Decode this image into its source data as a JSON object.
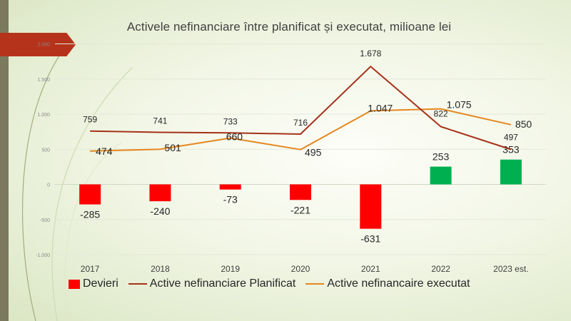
{
  "chart_data": {
    "type": "bar+line",
    "title": "Activele nefinanciare între planificat și executat, milioane lei",
    "categories": [
      "2017",
      "2018",
      "2019",
      "2020",
      "2021",
      "2022",
      "2023 est."
    ],
    "ylim": [
      -1000,
      2000
    ],
    "yticks": [
      -1000,
      -500,
      0,
      500,
      1000,
      1500,
      2000
    ],
    "ytick_labels": [
      "-1.000",
      "-500",
      "0",
      "500",
      "1.000",
      "1.500",
      "2.000"
    ],
    "series": [
      {
        "name": "Devieri",
        "type": "bar",
        "values": [
          -285,
          -240,
          -73,
          -221,
          -631,
          253,
          353
        ],
        "labels": [
          "-285",
          "-240",
          "-73",
          "-221",
          "-631",
          "253",
          "353"
        ]
      },
      {
        "name": "Active nefinanciare Planificat",
        "type": "line",
        "values": [
          759,
          741,
          733,
          716,
          1678,
          822,
          497
        ],
        "labels": [
          "759",
          "741",
          "733",
          "716",
          "1.678",
          "822",
          "497"
        ]
      },
      {
        "name": "Active nefinancaire executat",
        "type": "line",
        "values": [
          474,
          501,
          660,
          495,
          1047,
          1075,
          850
        ],
        "labels": [
          "474",
          "501",
          "660",
          "495",
          "1.047",
          "1.075",
          "850"
        ]
      }
    ],
    "colors": {
      "bar_negative": "#ff0000",
      "bar_positive": "#00b050",
      "planned_line": "#a5321a",
      "executed_line": "#e5861e"
    }
  }
}
